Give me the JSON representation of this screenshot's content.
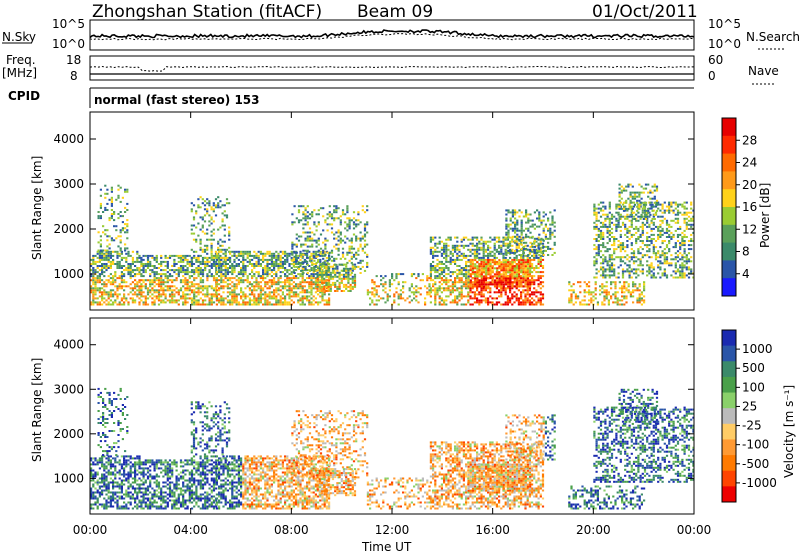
{
  "header": {
    "title": "Zhongshan Station (fitACF)",
    "beam": "Beam 09",
    "date": "01/Oct/2011"
  },
  "top_panels": {
    "nsky_label": "N.Sky",
    "nsearch_label": "N.Search",
    "nsky_ticks": [
      "10^5",
      "10^0"
    ],
    "nsearch_ticks": [
      "10^5",
      "10^0"
    ],
    "freq_label_1": "Freq.",
    "freq_label_2": "[MHz]",
    "freq_ticks": [
      "18",
      "8"
    ],
    "nave_label": "Nave",
    "nave_ticks": [
      "60",
      "0"
    ],
    "cpid_label": "CPID",
    "cpid_text": "normal (fast stereo) 153"
  },
  "colors": {
    "power_scale": [
      "#1a1aff",
      "#2a55a8",
      "#3b8a6a",
      "#5aa05a",
      "#9acc33",
      "#ffd21a",
      "#ff9a1a",
      "#ff6a00",
      "#ff2a00",
      "#e60000"
    ],
    "velocity_scale": [
      "#1a2ab0",
      "#2a55a8",
      "#3b8a6a",
      "#4aa04a",
      "#8ad06a",
      "#bbbbbb",
      "#ffcc66",
      "#ff9a33",
      "#ff7a00",
      "#ff4400",
      "#ee0000"
    ]
  },
  "chart_data": [
    {
      "type": "heatmap",
      "title": "Power",
      "ylabel": "Slant Range [km]",
      "xlabel": "Time UT",
      "x_ticks": [
        "00:00",
        "04:00",
        "08:00",
        "12:00",
        "16:00",
        "20:00",
        "00:00"
      ],
      "y_ticks": [
        "1000",
        "2000",
        "3000",
        "4000"
      ],
      "ylim": [
        200,
        4600
      ],
      "colorbar_label": "Power [dB]",
      "colorbar_ticks": [
        "4",
        "8",
        "12",
        "16",
        "20",
        "24",
        "28"
      ],
      "colorbar_range": [
        0,
        30
      ]
    },
    {
      "type": "heatmap",
      "title": "Velocity",
      "ylabel": "Slant Range [km]",
      "xlabel": "Time UT",
      "x_ticks": [
        "00:00",
        "04:00",
        "08:00",
        "12:00",
        "16:00",
        "20:00",
        "00:00"
      ],
      "y_ticks": [
        "1000",
        "2000",
        "3000",
        "4000"
      ],
      "ylim": [
        200,
        4600
      ],
      "colorbar_label": "Velocity [m s⁻¹]",
      "colorbar_ticks": [
        "1000",
        "500",
        "100",
        "25",
        "-25",
        "-100",
        "-500",
        "-1000"
      ]
    }
  ]
}
